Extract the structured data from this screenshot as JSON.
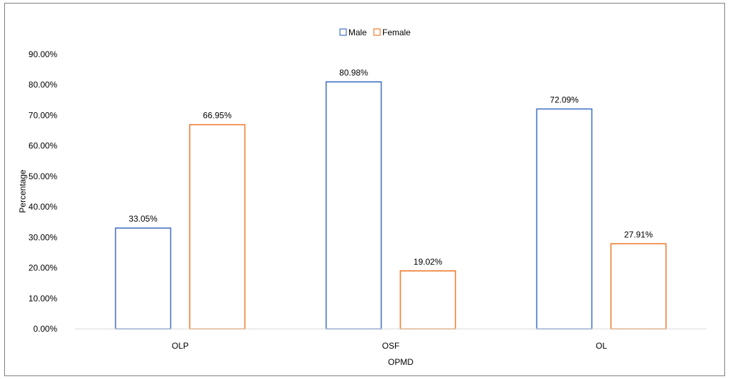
{
  "chart_data": {
    "type": "bar",
    "title": "",
    "xlabel": "OPMD",
    "ylabel": "Percentage",
    "categories": [
      "OLP",
      "OSF",
      "OL"
    ],
    "series": [
      {
        "name": "Male",
        "values": [
          33.05,
          80.98,
          72.09
        ],
        "labels": [
          "33.05%",
          "80.98%",
          "72.09%"
        ],
        "color": "#4472c4"
      },
      {
        "name": "Female",
        "values": [
          66.95,
          19.02,
          27.91
        ],
        "labels": [
          "66.95%",
          "19.02%",
          "27.91%"
        ],
        "color": "#ed7d31"
      }
    ],
    "ylim": [
      0,
      90
    ],
    "yticks": [
      0,
      10,
      20,
      30,
      40,
      50,
      60,
      70,
      80,
      90
    ],
    "ytick_labels": [
      "0.00%",
      "10.00%",
      "20.00%",
      "30.00%",
      "40.00%",
      "50.00%",
      "60.00%",
      "70.00%",
      "80.00%",
      "90.00%"
    ],
    "grid": false,
    "bar_style": "outline",
    "legend_position": "top-center"
  }
}
